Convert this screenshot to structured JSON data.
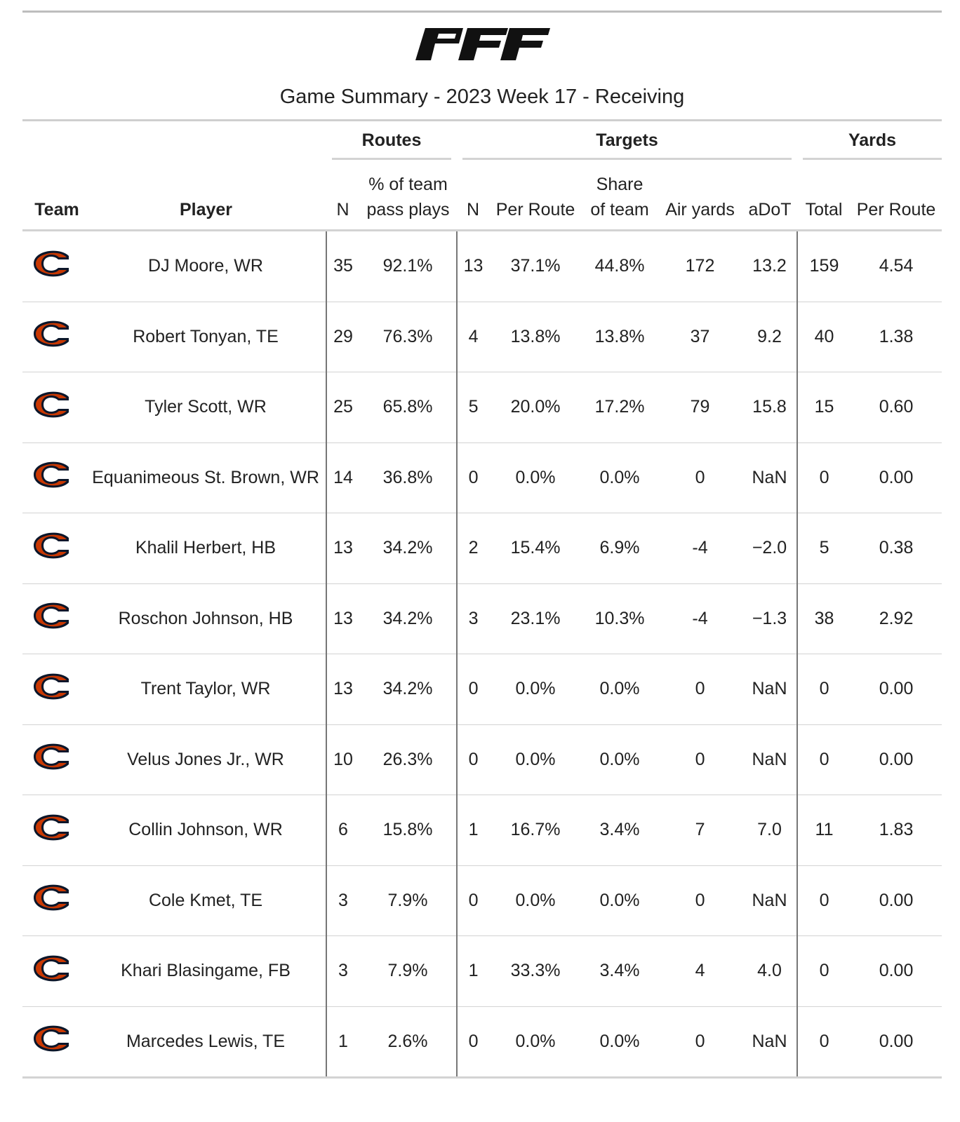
{
  "header": {
    "brand_logo": "pff-wordmark-logo",
    "subtitle": "Game Summary - 2023 Week 17 - Receiving"
  },
  "table": {
    "spanners": {
      "routes": "Routes",
      "targets": "Targets",
      "yards": "Yards"
    },
    "columns": {
      "team": "Team",
      "player": "Player",
      "routes_n": "N",
      "routes_pct_line1": "% of team",
      "routes_pct_line2": "pass plays",
      "targets_n": "N",
      "targets_per_route": "Per Route",
      "targets_share_line1": "Share",
      "targets_share_line2": "of team",
      "air_yards": "Air yards",
      "adot": "aDoT",
      "yards_total": "Total",
      "yards_per_route": "Per Route"
    },
    "team_logo": "chicago-bears-c-logo",
    "colors": {
      "logo_orange": "#C83803",
      "logo_navy": "#0B162A"
    },
    "rows": [
      {
        "player": "DJ Moore, WR",
        "routes_n": "35",
        "routes_pct": "92.1%",
        "targets_n": "13",
        "targets_per_route": "37.1%",
        "targets_share": "44.8%",
        "air_yards": "172",
        "adot": "13.2",
        "yards_total": "159",
        "yards_per_route": "4.54"
      },
      {
        "player": "Robert Tonyan, TE",
        "routes_n": "29",
        "routes_pct": "76.3%",
        "targets_n": "4",
        "targets_per_route": "13.8%",
        "targets_share": "13.8%",
        "air_yards": "37",
        "adot": "9.2",
        "yards_total": "40",
        "yards_per_route": "1.38"
      },
      {
        "player": "Tyler Scott, WR",
        "routes_n": "25",
        "routes_pct": "65.8%",
        "targets_n": "5",
        "targets_per_route": "20.0%",
        "targets_share": "17.2%",
        "air_yards": "79",
        "adot": "15.8",
        "yards_total": "15",
        "yards_per_route": "0.60"
      },
      {
        "player": "Equanimeous St. Brown, WR",
        "routes_n": "14",
        "routes_pct": "36.8%",
        "targets_n": "0",
        "targets_per_route": "0.0%",
        "targets_share": "0.0%",
        "air_yards": "0",
        "adot": "NaN",
        "yards_total": "0",
        "yards_per_route": "0.00"
      },
      {
        "player": "Khalil Herbert, HB",
        "routes_n": "13",
        "routes_pct": "34.2%",
        "targets_n": "2",
        "targets_per_route": "15.4%",
        "targets_share": "6.9%",
        "air_yards": "-4",
        "adot": "−2.0",
        "yards_total": "5",
        "yards_per_route": "0.38"
      },
      {
        "player": "Roschon Johnson, HB",
        "routes_n": "13",
        "routes_pct": "34.2%",
        "targets_n": "3",
        "targets_per_route": "23.1%",
        "targets_share": "10.3%",
        "air_yards": "-4",
        "adot": "−1.3",
        "yards_total": "38",
        "yards_per_route": "2.92"
      },
      {
        "player": "Trent Taylor, WR",
        "routes_n": "13",
        "routes_pct": "34.2%",
        "targets_n": "0",
        "targets_per_route": "0.0%",
        "targets_share": "0.0%",
        "air_yards": "0",
        "adot": "NaN",
        "yards_total": "0",
        "yards_per_route": "0.00"
      },
      {
        "player": "Velus Jones Jr., WR",
        "routes_n": "10",
        "routes_pct": "26.3%",
        "targets_n": "0",
        "targets_per_route": "0.0%",
        "targets_share": "0.0%",
        "air_yards": "0",
        "adot": "NaN",
        "yards_total": "0",
        "yards_per_route": "0.00"
      },
      {
        "player": "Collin Johnson, WR",
        "routes_n": "6",
        "routes_pct": "15.8%",
        "targets_n": "1",
        "targets_per_route": "16.7%",
        "targets_share": "3.4%",
        "air_yards": "7",
        "adot": "7.0",
        "yards_total": "11",
        "yards_per_route": "1.83"
      },
      {
        "player": "Cole Kmet, TE",
        "routes_n": "3",
        "routes_pct": "7.9%",
        "targets_n": "0",
        "targets_per_route": "0.0%",
        "targets_share": "0.0%",
        "air_yards": "0",
        "adot": "NaN",
        "yards_total": "0",
        "yards_per_route": "0.00"
      },
      {
        "player": "Khari Blasingame, FB",
        "routes_n": "3",
        "routes_pct": "7.9%",
        "targets_n": "1",
        "targets_per_route": "33.3%",
        "targets_share": "3.4%",
        "air_yards": "4",
        "adot": "4.0",
        "yards_total": "0",
        "yards_per_route": "0.00"
      },
      {
        "player": "Marcedes Lewis, TE",
        "routes_n": "1",
        "routes_pct": "2.6%",
        "targets_n": "0",
        "targets_per_route": "0.0%",
        "targets_share": "0.0%",
        "air_yards": "0",
        "adot": "NaN",
        "yards_total": "0",
        "yards_per_route": "0.00"
      }
    ]
  }
}
